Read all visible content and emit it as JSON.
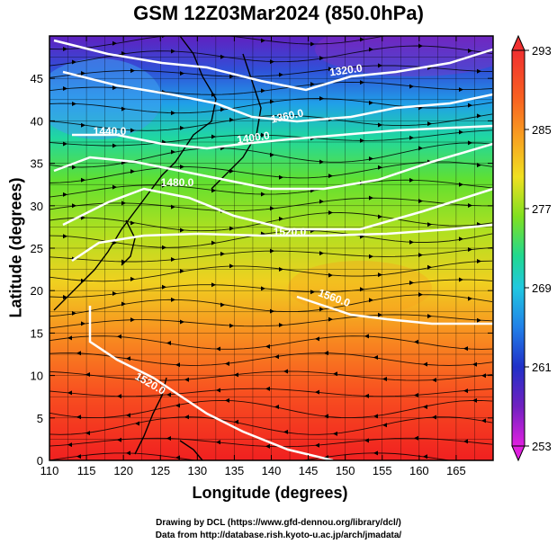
{
  "title": "GSM 12Z03Mar2024 (850.0hPa)",
  "x_axis": {
    "label": "Longitude (degrees)",
    "ticks": [
      "110",
      "115",
      "120",
      "125",
      "130",
      "135",
      "140",
      "145",
      "150",
      "155",
      "160",
      "165"
    ]
  },
  "y_axis": {
    "label": "Latitude  (degrees)",
    "ticks": [
      "0",
      "5",
      "10",
      "15",
      "20",
      "25",
      "30",
      "35",
      "40",
      "45"
    ]
  },
  "colorbar": {
    "labels": [
      "293",
      "285",
      "277",
      "269",
      "261",
      "253"
    ],
    "range": [
      253,
      293
    ],
    "stops": [
      "#e020e0",
      "#7020c0",
      "#2030c8",
      "#2080e8",
      "#20c8e0",
      "#20d890",
      "#40e020",
      "#a0e020",
      "#f0e020",
      "#f8a020",
      "#f86020",
      "#f02020"
    ]
  },
  "contours": [
    {
      "label": "1320.0"
    },
    {
      "label": "1360.0"
    },
    {
      "label": "1400.0"
    },
    {
      "label": "1440.0"
    },
    {
      "label": "1480.0"
    },
    {
      "label": "1520.0"
    },
    {
      "label": "1560.0"
    },
    {
      "label": "1520.0"
    }
  ],
  "credits": [
    "Drawing by DCL (https://www.gfd-dennou.org/library/dcl/)",
    "Data from http://database.rish.kyoto-u.ac.jp/arch/jmadata/"
  ]
}
